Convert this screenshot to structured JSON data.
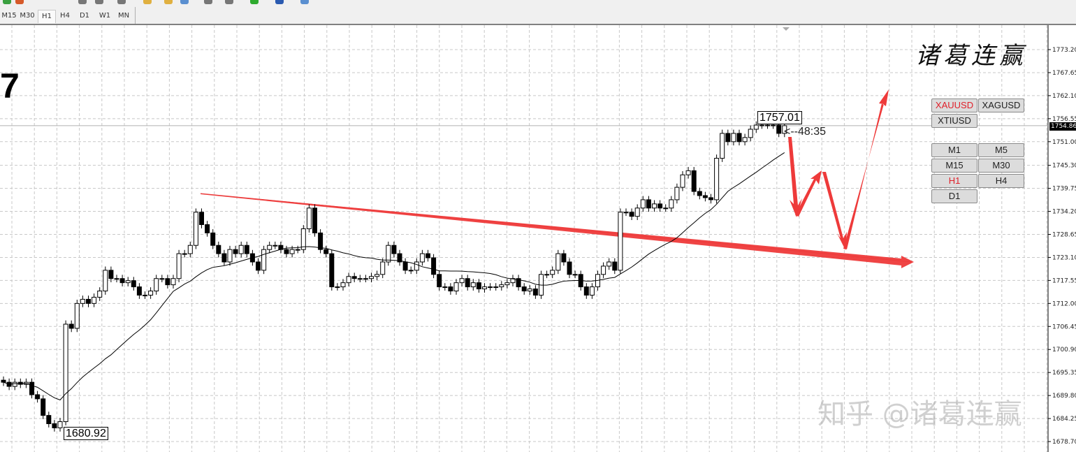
{
  "toolbar": {
    "timeframes": [
      {
        "label": "M15",
        "active": false
      },
      {
        "label": "M30",
        "active": false
      },
      {
        "label": "H1",
        "active": true
      },
      {
        "label": "H4",
        "active": false
      },
      {
        "label": "D1",
        "active": false
      },
      {
        "label": "W1",
        "active": false
      },
      {
        "label": "MN",
        "active": false
      }
    ]
  },
  "symbol_title_fragment": "7",
  "logo_text": "诸葛连赢",
  "watermark": "知乎 @诸葛连赢",
  "panel": {
    "symbols": [
      {
        "label": "XAUUSD",
        "active": true
      },
      {
        "label": "XAGUSD",
        "active": false
      },
      {
        "label": "XTIUSD",
        "active": false
      }
    ],
    "periods": [
      {
        "label": "M1",
        "active": false
      },
      {
        "label": "M5",
        "active": false
      },
      {
        "label": "M15",
        "active": false
      },
      {
        "label": "M30",
        "active": false
      },
      {
        "label": "H1",
        "active": true
      },
      {
        "label": "H4",
        "active": false
      },
      {
        "label": "D1",
        "active": false
      }
    ]
  },
  "colors": {
    "active_text": "#e0202a",
    "annotation": "#ee3a3a",
    "trendline": "#e23030",
    "candle_up": "#ffffff",
    "candle_down": "#000000"
  },
  "chart_data": {
    "type": "candlestick",
    "timeframe": "H1",
    "symbol": "XAUUSD",
    "ylim": [
      1676.0,
      1779.0
    ],
    "y_ticks": [
      "1773.20",
      "1767.65",
      "1762.10",
      "1756.55",
      "1751.00",
      "1745.30",
      "1739.75",
      "1734.20",
      "1728.65",
      "1723.10",
      "1717.55",
      "1712.00",
      "1706.45",
      "1700.90",
      "1695.35",
      "1689.80",
      "1684.25",
      "1678.70"
    ],
    "grid": true,
    "current_price": "1754.86",
    "high_label": "1757.01",
    "low_label": "1680.92",
    "countdown": "<--48:35",
    "moving_average_period": 20,
    "closes": [
      1693,
      1692,
      1693,
      1692.5,
      1693,
      1690,
      1689,
      1685,
      1683,
      1682,
      1683.5,
      1707,
      1706,
      1712,
      1713,
      1712,
      1713.5,
      1715,
      1720,
      1718,
      1718,
      1717,
      1717.5,
      1716,
      1714,
      1714,
      1715,
      1718,
      1718,
      1716.5,
      1718,
      1724,
      1724,
      1726,
      1734,
      1731,
      1729,
      1726,
      1724,
      1722,
      1725,
      1724,
      1726,
      1724,
      1722,
      1720,
      1725,
      1726,
      1726,
      1725,
      1724,
      1725,
      1725,
      1730,
      1735,
      1729,
      1725,
      1724,
      1716,
      1716,
      1717,
      1718.5,
      1718,
      1718,
      1718,
      1718.5,
      1719,
      1722,
      1726,
      1724,
      1722,
      1720,
      1720,
      1722,
      1724,
      1723,
      1719,
      1716,
      1716,
      1715,
      1717,
      1718,
      1716,
      1717,
      1715.5,
      1716,
      1716,
      1716,
      1716.5,
      1717,
      1718,
      1716,
      1715,
      1715.5,
      1714,
      1719,
      1719,
      1720,
      1724,
      1722,
      1719,
      1719,
      1716,
      1714,
      1716,
      1719,
      1721,
      1722,
      1720,
      1734,
      1734,
      1733,
      1735,
      1737,
      1735,
      1736,
      1735,
      1735,
      1737,
      1740,
      1743,
      1744,
      1739,
      1738,
      1737.5,
      1737,
      1747,
      1753,
      1751,
      1753,
      1751,
      1752,
      1754,
      1755,
      1755,
      1755,
      1755,
      1753,
      1754.86
    ],
    "trendline": {
      "start_price": 1738.5,
      "end_price": 1722.0
    }
  }
}
